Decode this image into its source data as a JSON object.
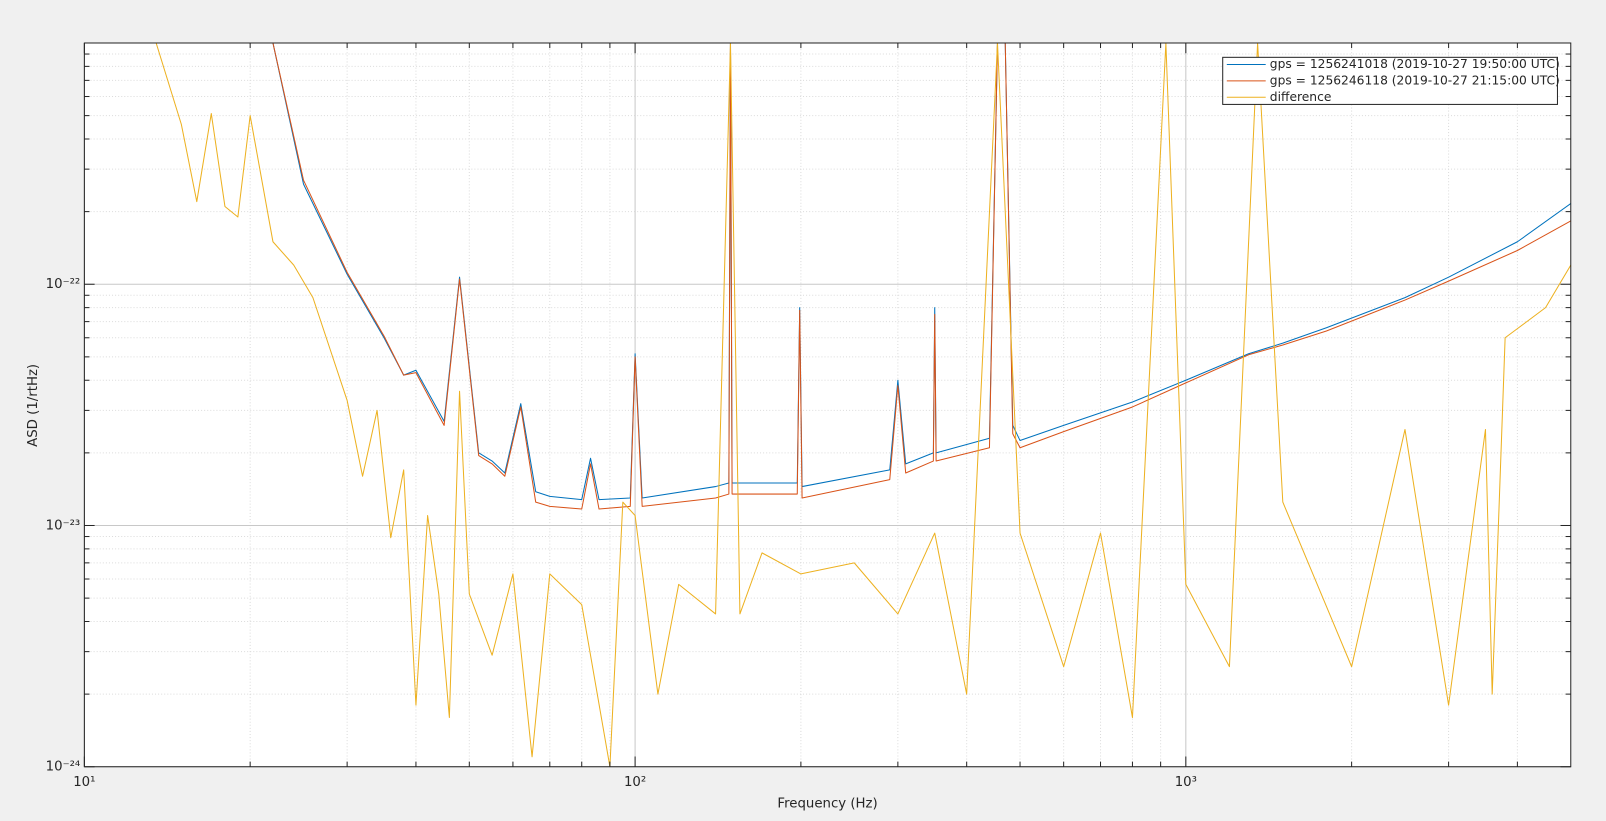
{
  "chart_data": {
    "type": "line",
    "xlabel": "Frequency (Hz)",
    "ylabel": "ASD (1/rtHz)",
    "xscale": "log",
    "yscale": "log",
    "grid": true,
    "minor_grid": true,
    "legend": "upper right",
    "xlim": [
      10,
      5000
    ],
    "ylim": [
      1e-24,
      1e-21
    ],
    "xticks": [
      {
        "value": 10,
        "label": "10¹"
      },
      {
        "value": 100,
        "label": "10²"
      },
      {
        "value": 1000,
        "label": "10³"
      }
    ],
    "yticks": [
      {
        "value": 1e-24,
        "label": "10⁻²⁴"
      },
      {
        "value": 1e-23,
        "label": "10⁻²³"
      },
      {
        "value": 1e-22,
        "label": "10⁻²²"
      }
    ],
    "xminorticks": [
      20,
      30,
      40,
      50,
      60,
      70,
      80,
      90,
      200,
      300,
      400,
      500,
      600,
      700,
      800,
      900,
      2000,
      3000,
      4000
    ],
    "yminorticks": [
      2e-24,
      3e-24,
      4e-24,
      5e-24,
      6e-24,
      7e-24,
      8e-24,
      9e-24,
      2e-23,
      3e-23,
      4e-23,
      5e-23,
      6e-23,
      7e-23,
      8e-23,
      9e-23,
      2e-22,
      3e-22,
      4e-22,
      5e-22,
      6e-22,
      7e-22,
      8e-22,
      9e-22
    ],
    "series": [
      {
        "name": "gps = 1256241018 (2019-10-27 19:50:00 UTC)",
        "color": "#0072bd",
        "x": [
          22,
          25,
          30,
          35,
          38,
          40,
          45,
          48,
          52,
          55,
          58,
          62,
          66,
          70,
          80,
          83,
          86,
          98,
          100,
          103,
          140,
          148,
          149,
          150,
          197,
          199,
          201,
          290,
          300,
          310,
          348,
          350,
          352,
          440,
          455,
          470,
          485,
          500,
          600,
          800,
          1000,
          1300,
          1500,
          1800,
          2500,
          3000,
          4000,
          5000
        ],
        "values": [
          1e-21,
          2.6e-22,
          1.1e-22,
          6e-23,
          4.2e-23,
          4.4e-23,
          2.7e-23,
          1.07e-22,
          2e-23,
          1.85e-23,
          1.65e-23,
          3.2e-23,
          1.38e-23,
          1.32e-23,
          1.28e-23,
          1.9e-23,
          1.28e-23,
          1.3e-23,
          5.15e-23,
          1.3e-23,
          1.45e-23,
          1.5e-23,
          1e-21,
          1.5e-23,
          1.5e-23,
          8e-23,
          1.45e-23,
          1.7e-23,
          4e-23,
          1.8e-23,
          2e-23,
          8e-23,
          2e-23,
          2.3e-23,
          1e-21,
          1e-21,
          2.6e-23,
          2.25e-23,
          2.6e-23,
          3.25e-23,
          4e-23,
          5.15e-23,
          5.7e-23,
          6.6e-23,
          8.8e-23,
          1.07e-22,
          1.5e-22,
          2.16e-22
        ]
      },
      {
        "name": "gps = 1256246118 (2019-10-27 21:15:00 UTC)",
        "color": "#d95319",
        "x": [
          22,
          25,
          30,
          35,
          38,
          40,
          45,
          48,
          52,
          55,
          58,
          62,
          66,
          70,
          80,
          83,
          86,
          98,
          100,
          103,
          140,
          148,
          149,
          150,
          197,
          199,
          201,
          290,
          300,
          310,
          348,
          350,
          352,
          440,
          455,
          470,
          485,
          500,
          600,
          800,
          1000,
          1300,
          1500,
          1800,
          2500,
          3000,
          4000,
          5000
        ],
        "values": [
          1e-21,
          2.7e-22,
          1.12e-22,
          6.1e-23,
          4.2e-23,
          4.3e-23,
          2.6e-23,
          1.05e-22,
          1.95e-23,
          1.8e-23,
          1.6e-23,
          3.1e-23,
          1.25e-23,
          1.2e-23,
          1.17e-23,
          1.8e-23,
          1.17e-23,
          1.2e-23,
          5e-23,
          1.2e-23,
          1.3e-23,
          1.35e-23,
          1e-21,
          1.35e-23,
          1.35e-23,
          7.8e-23,
          1.3e-23,
          1.55e-23,
          3.8e-23,
          1.65e-23,
          1.85e-23,
          7.5e-23,
          1.85e-23,
          2.1e-23,
          1e-21,
          1e-21,
          2.4e-23,
          2.1e-23,
          2.45e-23,
          3.1e-23,
          3.9e-23,
          5.1e-23,
          5.6e-23,
          6.4e-23,
          8.6e-23,
          1.03e-22,
          1.38e-22,
          1.83e-22
        ]
      },
      {
        "name": "difference",
        "color": "#edb120",
        "x": [
          13.5,
          15,
          16,
          17,
          18,
          19,
          20,
          22,
          24,
          26,
          30,
          32,
          34,
          36,
          38,
          40,
          42,
          44,
          46,
          48,
          50,
          55,
          60,
          65,
          70,
          80,
          90,
          95,
          100,
          110,
          120,
          140,
          149,
          155,
          170,
          200,
          250,
          300,
          350,
          400,
          455,
          500,
          600,
          700,
          800,
          920,
          1000,
          1200,
          1350,
          1500,
          2000,
          2500,
          3000,
          3500,
          3600,
          3700,
          3800,
          4500,
          5000
        ],
        "values": [
          1e-21,
          4.6e-22,
          2.2e-22,
          5.1e-22,
          2.1e-22,
          1.9e-22,
          5e-22,
          1.5e-22,
          1.2e-22,
          8.8e-23,
          3.3e-23,
          1.6e-23,
          3e-23,
          8.9e-24,
          1.7e-23,
          1.8e-24,
          1.1e-23,
          5.2e-24,
          1.6e-24,
          3.6e-23,
          5.2e-24,
          2.9e-24,
          6.3e-24,
          1.1e-24,
          6.3e-24,
          4.7e-24,
          1e-24,
          1.25e-23,
          1.1e-23,
          2e-24,
          5.7e-24,
          4.3e-24,
          1e-21,
          4.3e-24,
          7.7e-24,
          6.3e-24,
          7e-24,
          4.3e-24,
          9.3e-24,
          2e-24,
          1e-21,
          9.3e-24,
          2.6e-24,
          9.3e-24,
          1.6e-24,
          1e-21,
          5.7e-24,
          2.6e-24,
          1e-21,
          1.25e-23,
          2.6e-24,
          2.5e-23,
          1.8e-24,
          2.5e-23,
          2e-24,
          1.1e-23,
          6e-23,
          8e-23,
          1.2e-22
        ]
      }
    ]
  }
}
